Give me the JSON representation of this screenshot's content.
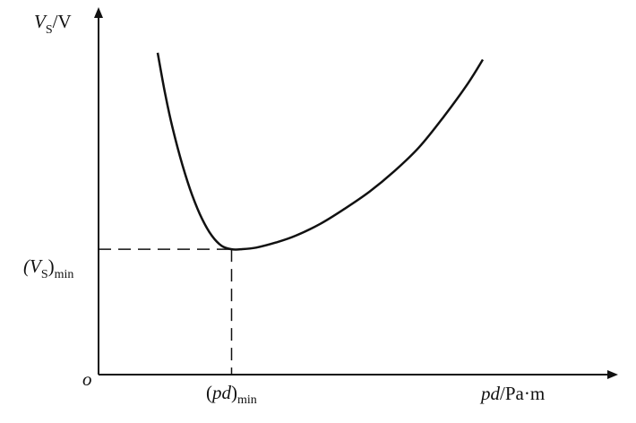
{
  "chart_data": {
    "type": "line",
    "title": "",
    "ylabel": {
      "var": "V",
      "sub": "S",
      "unit": "/V"
    },
    "xlabel": {
      "var": "pd",
      "unit": "/Pa·m"
    },
    "origin_label": "o",
    "ymin_label": {
      "open": "(V",
      "sub": "S",
      "close": ")",
      "subscript": "min"
    },
    "xmin_label": {
      "open": "(",
      "var": "pd",
      "close": ")",
      "subscript": "min"
    },
    "xlim": [
      0,
      10
    ],
    "ylim": [
      0,
      10
    ],
    "minimum": {
      "x": 2.7,
      "y": 3.7
    },
    "series": [
      {
        "x": [
          1.2,
          1.35,
          1.5,
          1.7,
          1.9,
          2.1,
          2.3,
          2.5,
          2.7,
          2.9,
          3.2,
          3.6,
          4.0,
          4.5,
          5.0,
          5.5,
          6.0,
          6.5,
          7.0,
          7.5,
          7.8
        ],
        "y": [
          9.5,
          8.3,
          7.3,
          6.2,
          5.3,
          4.6,
          4.1,
          3.8,
          3.7,
          3.7,
          3.75,
          3.9,
          4.1,
          4.45,
          4.9,
          5.4,
          6.0,
          6.7,
          7.6,
          8.6,
          9.3
        ]
      }
    ],
    "grid": false,
    "legend": "none"
  }
}
